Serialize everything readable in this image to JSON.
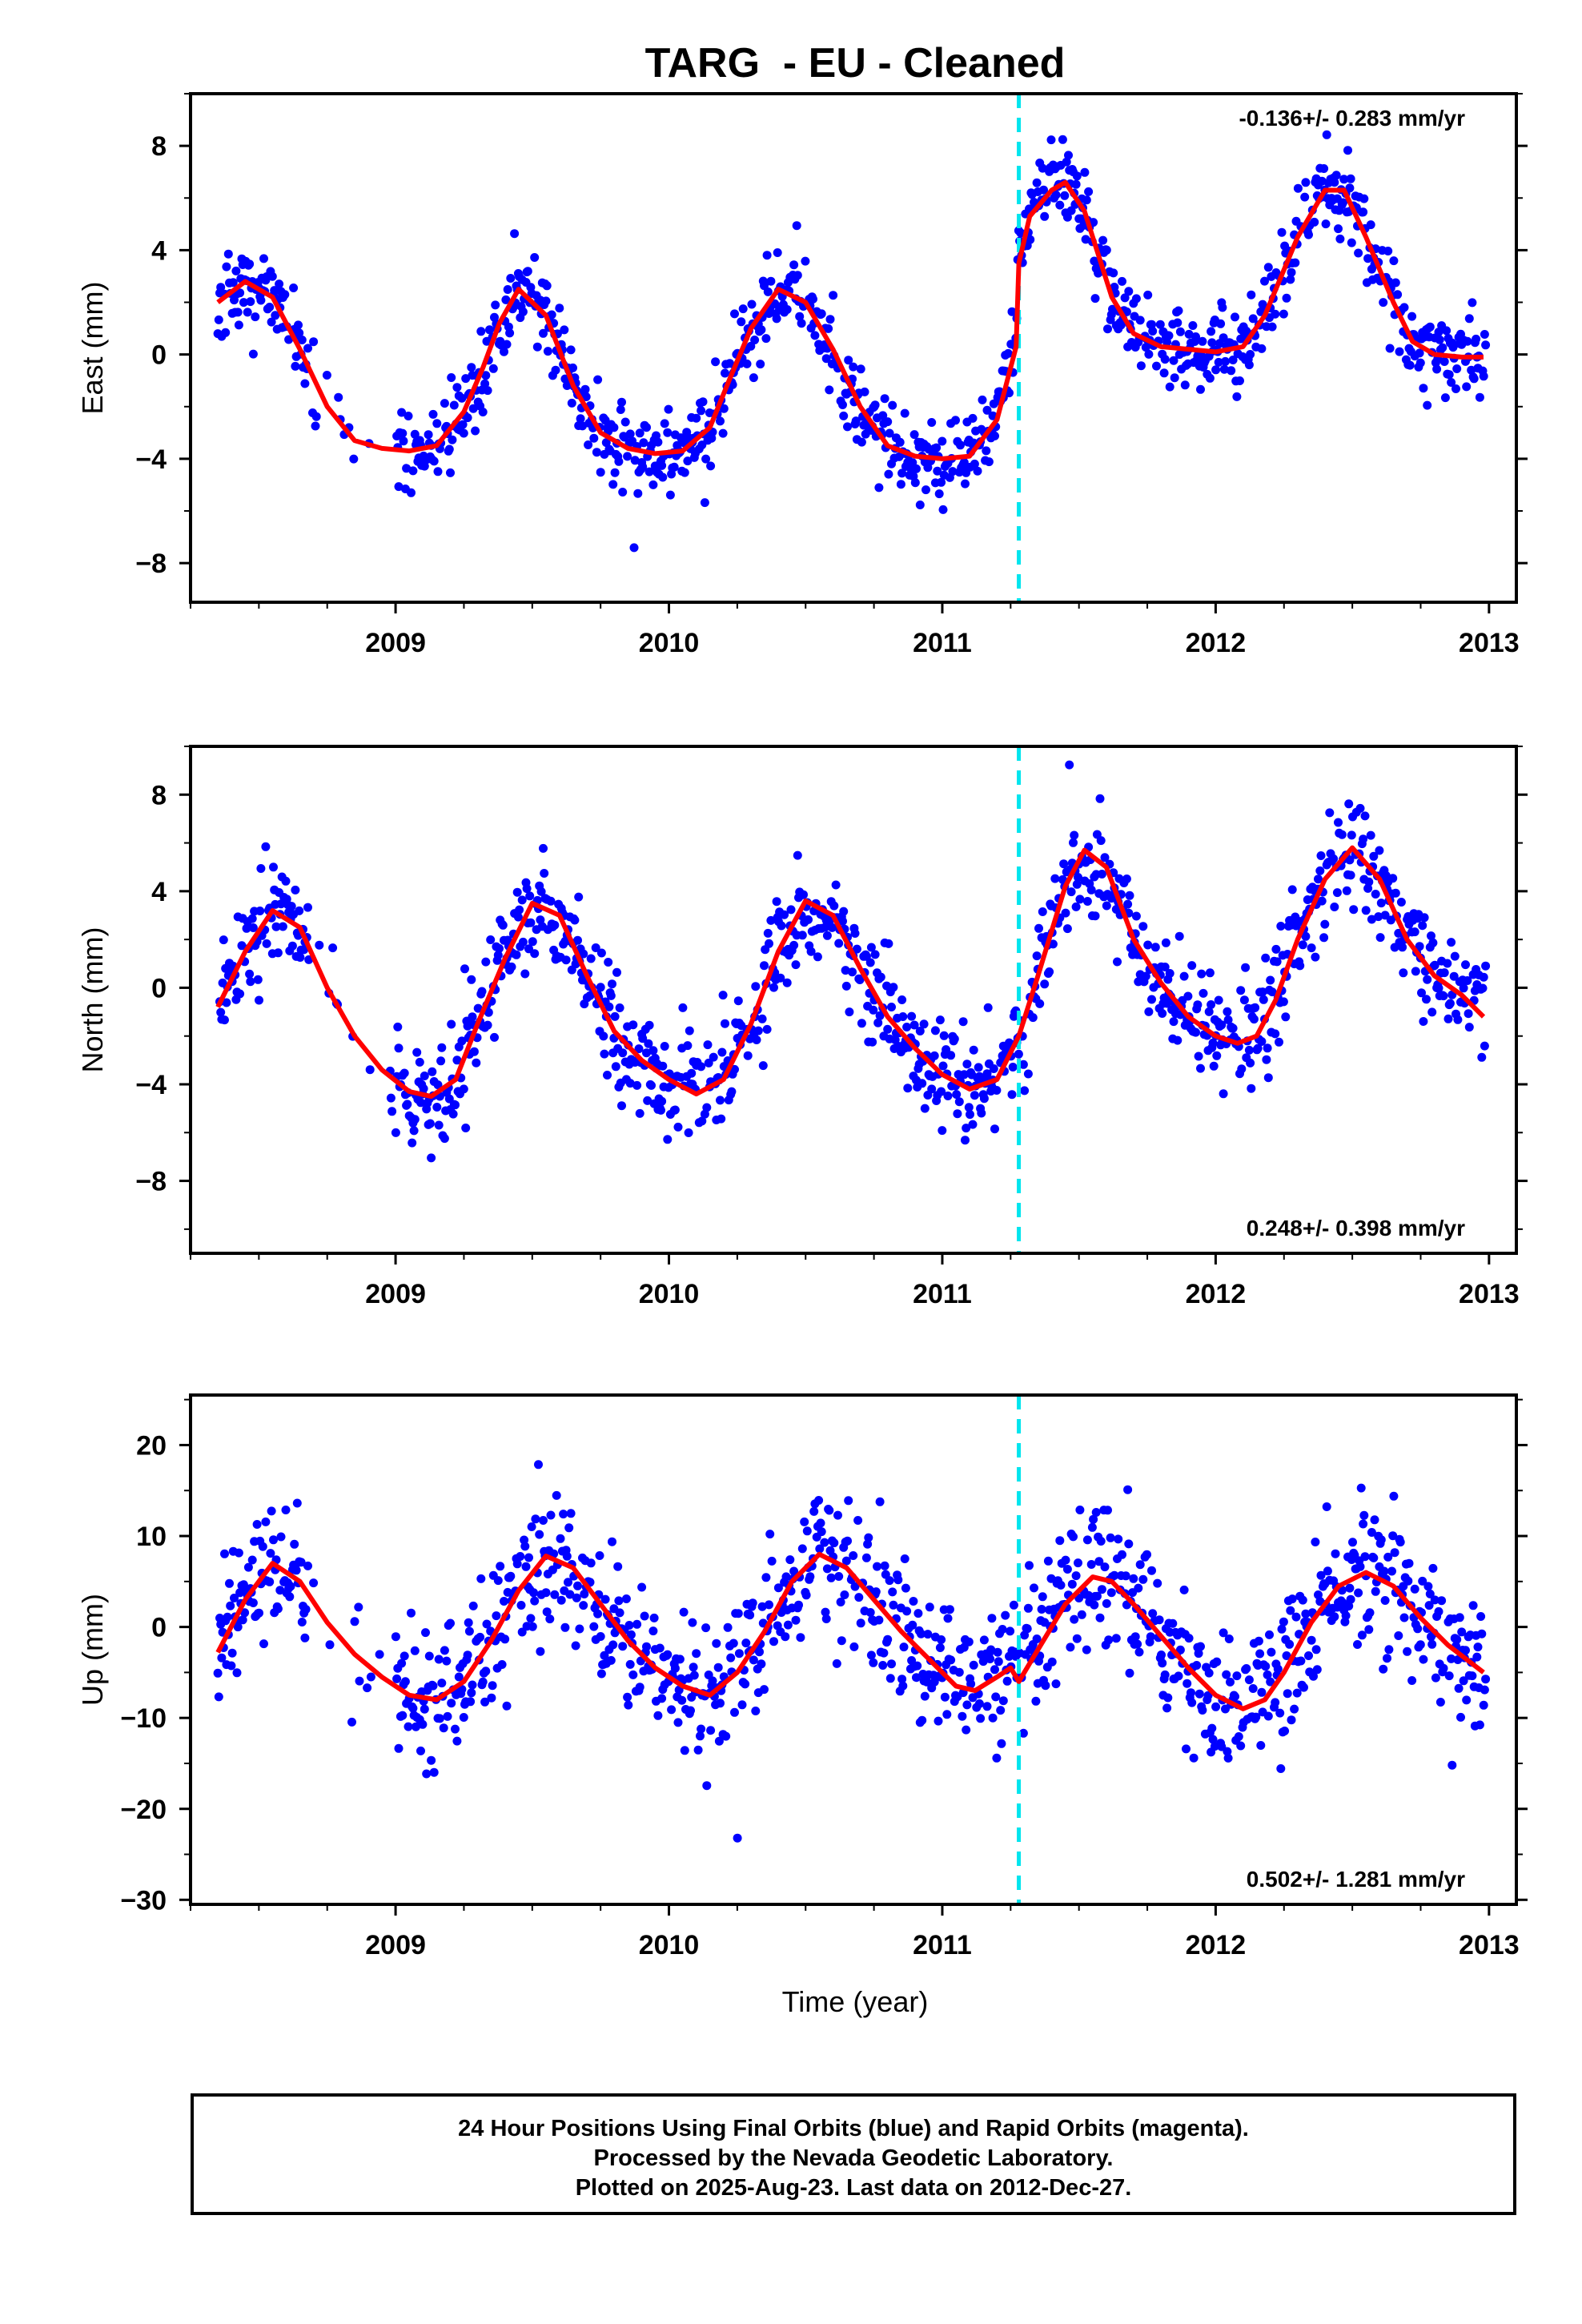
{
  "chart_data": {
    "title": "TARG  - EU - Cleaned",
    "type": "scatter",
    "xlabel": "Time (year)",
    "x_ticks": [
      "2009",
      "2010",
      "2011",
      "2012",
      "2013"
    ],
    "xlim": [
      2008.25,
      2013.1
    ],
    "earthquake_marker_x": 2011.28,
    "colors": {
      "points": "#0000ff",
      "fit": "#ff0000",
      "marker": "#00e5ee"
    },
    "panels": [
      {
        "name": "east",
        "ylabel": "East (mm)",
        "ylim": [
          -9.5,
          10
        ],
        "y_ticks": [
          "8",
          "4",
          "0",
          "−4",
          "−8"
        ],
        "rate": "-0.136+/- 0.283 mm/yr",
        "rate_position": "top-right",
        "fit": [
          [
            2008.35,
            2.0
          ],
          [
            2008.45,
            2.8
          ],
          [
            2008.55,
            2.2
          ],
          [
            2008.65,
            0.2
          ],
          [
            2008.75,
            -2.0
          ],
          [
            2008.85,
            -3.3
          ],
          [
            2008.95,
            -3.6
          ],
          [
            2009.05,
            -3.7
          ],
          [
            2009.15,
            -3.5
          ],
          [
            2009.25,
            -2.2
          ],
          [
            2009.32,
            -0.5
          ],
          [
            2009.38,
            1.2
          ],
          [
            2009.45,
            2.5
          ],
          [
            2009.55,
            1.5
          ],
          [
            2009.65,
            -1.2
          ],
          [
            2009.75,
            -3.0
          ],
          [
            2009.85,
            -3.6
          ],
          [
            2009.95,
            -3.8
          ],
          [
            2010.05,
            -3.7
          ],
          [
            2010.15,
            -2.8
          ],
          [
            2010.22,
            -1.0
          ],
          [
            2010.3,
            1.0
          ],
          [
            2010.4,
            2.5
          ],
          [
            2010.5,
            2.0
          ],
          [
            2010.6,
            0.2
          ],
          [
            2010.7,
            -2.0
          ],
          [
            2010.8,
            -3.5
          ],
          [
            2010.9,
            -3.9
          ],
          [
            2011.0,
            -4.0
          ],
          [
            2011.1,
            -3.9
          ],
          [
            2011.2,
            -2.5
          ],
          [
            2011.27,
            0.3
          ],
          [
            2011.28,
            3.5
          ],
          [
            2011.32,
            5.3
          ],
          [
            2011.4,
            6.3
          ],
          [
            2011.45,
            6.6
          ],
          [
            2011.52,
            5.5
          ],
          [
            2011.62,
            2.2
          ],
          [
            2011.7,
            0.8
          ],
          [
            2011.8,
            0.3
          ],
          [
            2011.9,
            0.2
          ],
          [
            2012.0,
            0.1
          ],
          [
            2012.1,
            0.3
          ],
          [
            2012.18,
            1.5
          ],
          [
            2012.3,
            4.5
          ],
          [
            2012.4,
            6.3
          ],
          [
            2012.47,
            6.3
          ],
          [
            2012.55,
            4.5
          ],
          [
            2012.65,
            2.0
          ],
          [
            2012.72,
            0.5
          ],
          [
            2012.8,
            0.0
          ],
          [
            2012.9,
            -0.1
          ],
          [
            2012.98,
            -0.1
          ]
        ],
        "scatter_sigma": 0.8
      },
      {
        "name": "north",
        "ylabel": "North (mm)",
        "ylim": [
          -11,
          10
        ],
        "y_ticks": [
          "8",
          "4",
          "0",
          "−4",
          "−8"
        ],
        "rate": "0.248+/- 0.398 mm/yr",
        "rate_position": "bottom-right",
        "fit": [
          [
            2008.35,
            -0.8
          ],
          [
            2008.45,
            1.5
          ],
          [
            2008.55,
            3.2
          ],
          [
            2008.65,
            2.5
          ],
          [
            2008.75,
            0.0
          ],
          [
            2008.85,
            -2.0
          ],
          [
            2008.95,
            -3.4
          ],
          [
            2009.05,
            -4.3
          ],
          [
            2009.13,
            -4.5
          ],
          [
            2009.22,
            -3.8
          ],
          [
            2009.3,
            -1.5
          ],
          [
            2009.4,
            1.2
          ],
          [
            2009.5,
            3.5
          ],
          [
            2009.6,
            3.0
          ],
          [
            2009.7,
            0.5
          ],
          [
            2009.8,
            -1.8
          ],
          [
            2009.9,
            -3.0
          ],
          [
            2010.0,
            -3.8
          ],
          [
            2010.1,
            -4.4
          ],
          [
            2010.2,
            -3.8
          ],
          [
            2010.3,
            -1.5
          ],
          [
            2010.4,
            1.5
          ],
          [
            2010.5,
            3.6
          ],
          [
            2010.6,
            3.0
          ],
          [
            2010.7,
            0.8
          ],
          [
            2010.8,
            -1.2
          ],
          [
            2010.9,
            -2.5
          ],
          [
            2011.0,
            -3.6
          ],
          [
            2011.1,
            -4.2
          ],
          [
            2011.2,
            -3.8
          ],
          [
            2011.28,
            -2.0
          ],
          [
            2011.35,
            0.5
          ],
          [
            2011.45,
            4.2
          ],
          [
            2011.52,
            5.7
          ],
          [
            2011.6,
            5.0
          ],
          [
            2011.7,
            2.0
          ],
          [
            2011.8,
            0.2
          ],
          [
            2011.9,
            -1.2
          ],
          [
            2012.0,
            -2.0
          ],
          [
            2012.08,
            -2.3
          ],
          [
            2012.15,
            -2.0
          ],
          [
            2012.22,
            -0.5
          ],
          [
            2012.3,
            2.0
          ],
          [
            2012.4,
            4.5
          ],
          [
            2012.5,
            5.8
          ],
          [
            2012.6,
            4.5
          ],
          [
            2012.7,
            2.0
          ],
          [
            2012.8,
            0.5
          ],
          [
            2012.9,
            -0.3
          ],
          [
            2012.98,
            -1.2
          ]
        ],
        "scatter_sigma": 1.1
      },
      {
        "name": "up",
        "ylabel": "Up (mm)",
        "ylim": [
          -30.5,
          25.5
        ],
        "y_ticks": [
          "20",
          "10",
          "0",
          "−10",
          "−20",
          "−30"
        ],
        "rate": "0.502+/- 1.281 mm/yr",
        "rate_position": "bottom-right",
        "fit": [
          [
            2008.35,
            -2.8
          ],
          [
            2008.45,
            3.0
          ],
          [
            2008.55,
            7.0
          ],
          [
            2008.65,
            5.0
          ],
          [
            2008.75,
            0.5
          ],
          [
            2008.85,
            -3.0
          ],
          [
            2008.95,
            -5.5
          ],
          [
            2009.05,
            -7.5
          ],
          [
            2009.15,
            -8.0
          ],
          [
            2009.25,
            -6.0
          ],
          [
            2009.35,
            -1.5
          ],
          [
            2009.45,
            4.0
          ],
          [
            2009.55,
            7.8
          ],
          [
            2009.65,
            6.5
          ],
          [
            2009.75,
            2.5
          ],
          [
            2009.85,
            -1.5
          ],
          [
            2009.95,
            -4.5
          ],
          [
            2010.05,
            -6.5
          ],
          [
            2010.15,
            -7.5
          ],
          [
            2010.25,
            -5.0
          ],
          [
            2010.35,
            -0.5
          ],
          [
            2010.45,
            5.0
          ],
          [
            2010.55,
            8.0
          ],
          [
            2010.65,
            6.5
          ],
          [
            2010.75,
            3.0
          ],
          [
            2010.85,
            -0.5
          ],
          [
            2010.95,
            -3.5
          ],
          [
            2011.05,
            -6.5
          ],
          [
            2011.12,
            -7.0
          ],
          [
            2011.2,
            -5.5
          ],
          [
            2011.25,
            -4.5
          ],
          [
            2011.28,
            -6.0
          ],
          [
            2011.32,
            -4.0
          ],
          [
            2011.37,
            -1.5
          ],
          [
            2011.45,
            2.5
          ],
          [
            2011.55,
            5.5
          ],
          [
            2011.62,
            5.0
          ],
          [
            2011.7,
            2.5
          ],
          [
            2011.8,
            -1.0
          ],
          [
            2011.9,
            -4.5
          ],
          [
            2012.0,
            -7.5
          ],
          [
            2012.1,
            -9.0
          ],
          [
            2012.18,
            -8.0
          ],
          [
            2012.25,
            -5.0
          ],
          [
            2012.35,
            0.5
          ],
          [
            2012.45,
            4.5
          ],
          [
            2012.55,
            6.0
          ],
          [
            2012.65,
            4.5
          ],
          [
            2012.75,
            1.0
          ],
          [
            2012.85,
            -2.0
          ],
          [
            2012.98,
            -5.0
          ]
        ],
        "scatter_sigma": 3.8
      }
    ]
  },
  "footer": {
    "line1": "24 Hour Positions Using Final Orbits (blue) and Rapid Orbits (magenta).",
    "line2": "Processed by the Nevada Geodetic Laboratory.",
    "line3": "Plotted on 2025-Aug-23. Last data on 2012-Dec-27."
  }
}
